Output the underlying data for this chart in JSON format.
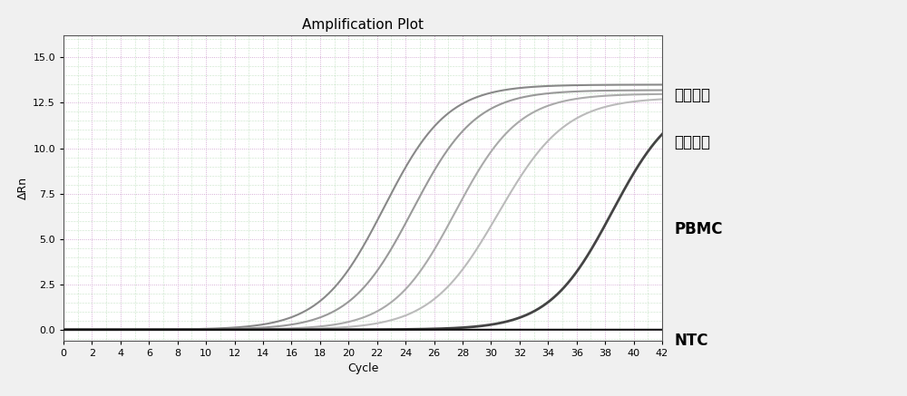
{
  "title": "Amplification Plot",
  "xlabel": "Cycle",
  "ylabel": "ΔRn",
  "xlim": [
    0,
    42
  ],
  "ylim": [
    -0.6,
    16.2
  ],
  "xticks": [
    0,
    2,
    4,
    6,
    8,
    10,
    12,
    14,
    16,
    18,
    20,
    22,
    24,
    26,
    28,
    30,
    32,
    34,
    36,
    38,
    40,
    42
  ],
  "yticks": [
    0.0,
    2.5,
    5.0,
    7.5,
    10.0,
    12.5,
    15.0
  ],
  "background_color": "#f0f0f0",
  "plot_bg_color": "#ffffff",
  "grid_color_major": "#cc99cc",
  "grid_color_minor": "#99cc99",
  "curves": [
    {
      "color": "#888888",
      "midpoint": 22.5,
      "steepness": 0.45,
      "max_val": 13.5,
      "lw": 1.5
    },
    {
      "color": "#999999",
      "midpoint": 24.5,
      "steepness": 0.45,
      "max_val": 13.2,
      "lw": 1.5
    },
    {
      "color": "#aaaaaa",
      "midpoint": 27.5,
      "steepness": 0.45,
      "max_val": 13.0,
      "lw": 1.5
    },
    {
      "color": "#bbbbbb",
      "midpoint": 30.5,
      "steepness": 0.42,
      "max_val": 12.8,
      "lw": 1.5
    },
    {
      "color": "#444444",
      "midpoint": 38.5,
      "steepness": 0.45,
      "max_val": 13.0,
      "lw": 2.0
    },
    {
      "color": "#111111",
      "midpoint": 80.0,
      "steepness": 0.3,
      "max_val": 0.05,
      "lw": 1.5
    }
  ],
  "annotation_sample_line1": "不同浓度",
  "annotation_sample_line2": "检测样本",
  "annotation_pbmc": "PBMC",
  "annotation_ntc": "NTC",
  "title_fontsize": 11,
  "axis_fontsize": 9,
  "tick_fontsize": 8,
  "annot_fontsize": 12
}
